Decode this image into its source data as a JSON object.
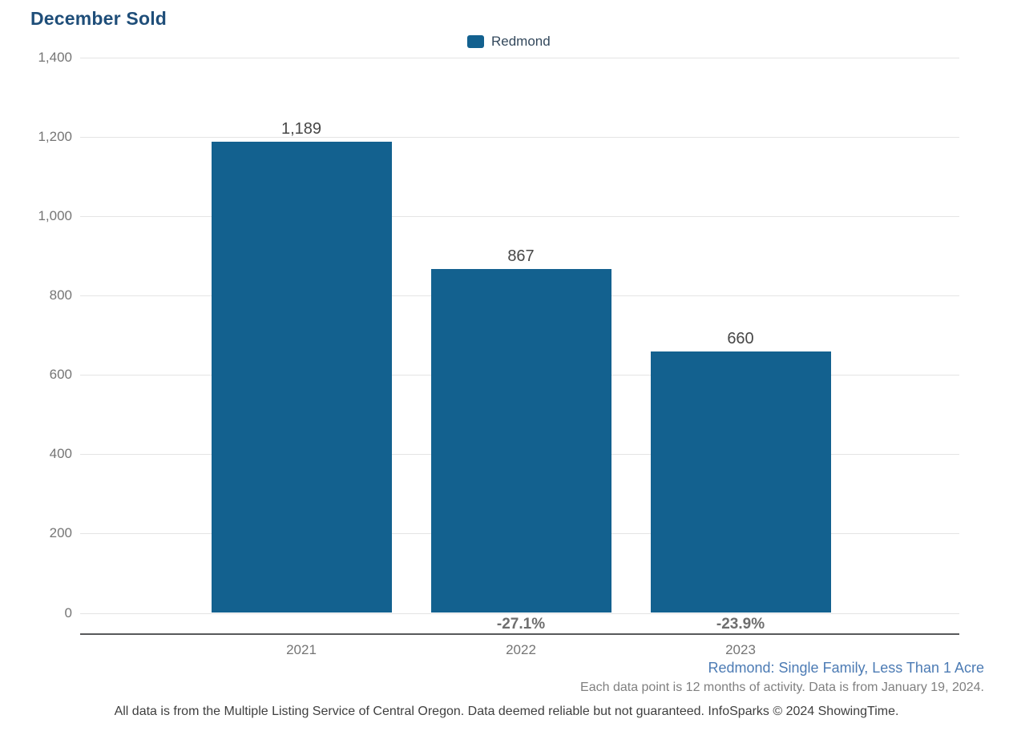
{
  "title": "December Sold",
  "legend": {
    "items": [
      {
        "label": "Redmond",
        "color": "#13618F"
      }
    ],
    "position": "top-center"
  },
  "chart_data": {
    "type": "bar",
    "title": "December Sold",
    "categories": [
      "2021",
      "2022",
      "2023"
    ],
    "series": [
      {
        "name": "Redmond",
        "values": [
          1189,
          867,
          660
        ]
      }
    ],
    "value_labels": [
      "1,189",
      "867",
      "660"
    ],
    "pct_change_labels": [
      "",
      "-27.1%",
      "-23.9%"
    ],
    "xlabel": "",
    "ylabel": "",
    "ylim": [
      0,
      1400
    ],
    "ytick_step": 200,
    "ytick_labels": [
      "0",
      "200",
      "400",
      "600",
      "800",
      "1,000",
      "1,200",
      "1,400"
    ],
    "grid": true,
    "legend_position": "top-center",
    "bar_color": "#13618F"
  },
  "colors": {
    "title": "#1F4E79",
    "bar": "#13618F",
    "gridline": "#E4E4E4",
    "axis_line": "#58595B",
    "tick_label": "#757575",
    "value_label": "#474747",
    "pct_label": "#6E6E6E",
    "footer_segment": "#4C7BB4",
    "footer_note": "#808080",
    "footer_disclaimer": "#3F3F3F"
  },
  "footer": {
    "segment_label": "Redmond: Single Family, Less Than 1 Acre",
    "data_note": "Each data point is 12 months of activity. Data is from January 19, 2024.",
    "disclaimer": "All data is from the Multiple Listing Service of Central Oregon. Data deemed reliable but not guaranteed. InfoSparks © 2024 ShowingTime."
  }
}
